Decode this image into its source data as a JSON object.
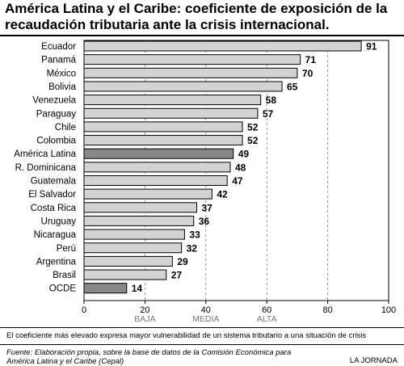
{
  "title_line1": "América Latina y el Caribe: coeficiente de exposición de la",
  "title_line2": "recaudación tributaria ante la crisis internacional.",
  "note": "El coeficiente más elevado expresa mayor vulnerabilidad de un sistema tributario a una situación de crisis",
  "source_line1": "Fuente: Elaboración propia, sobre la base de datos de la Comisión Económica para",
  "source_line2": "América Latina y el Caribe (Cepal)",
  "credit": "LA JORNADA",
  "colors": {
    "bar": "#d3d3d3",
    "highlight": "#888888",
    "border": "#000000"
  },
  "chart_data": {
    "type": "bar",
    "orientation": "horizontal",
    "categories": [
      "Ecuador",
      "Panamá",
      "México",
      "Bolivia",
      "Venezuela",
      "Paraguay",
      "Chile",
      "Colombia",
      "América Latina",
      "R. Dominicana",
      "Guatemala",
      "El Salvador",
      "Costa Rica",
      "Uruguay",
      "Nicaragua",
      "Perú",
      "Argentina",
      "Brasil",
      "OCDE"
    ],
    "values": [
      91,
      71,
      70,
      65,
      58,
      57,
      52,
      52,
      49,
      48,
      47,
      42,
      37,
      36,
      33,
      32,
      29,
      27,
      14
    ],
    "highlighted": [
      "América Latina",
      "OCDE"
    ],
    "xlim": [
      0,
      100
    ],
    "xticks": [
      0,
      20,
      40,
      60,
      80,
      100
    ],
    "grid": "dashed vertical at 20, 40, 60, 80",
    "bands": [
      {
        "label": "BAJA",
        "center": 20
      },
      {
        "label": "MEDIA",
        "center": 40
      },
      {
        "label": "ALTA",
        "center": 60
      }
    ]
  }
}
